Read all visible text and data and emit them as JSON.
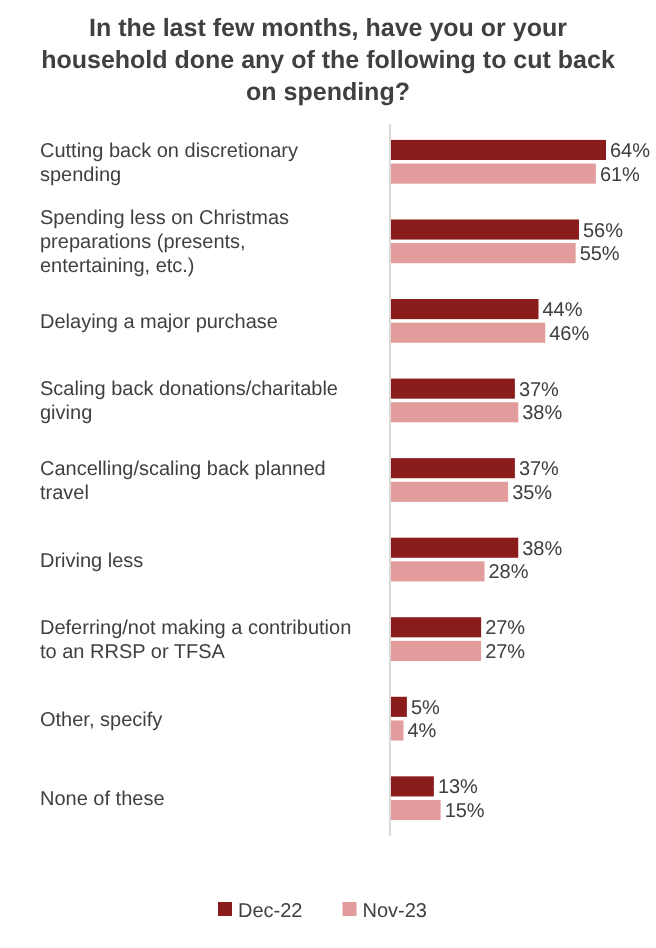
{
  "chart_data": {
    "type": "bar",
    "orientation": "horizontal",
    "title": "In the last few months, have you or your household done any of the following to cut back on spending?",
    "categories": [
      "Cutting back on discretionary spending",
      "Spending less on Christmas preparations (presents, entertaining, etc.)",
      "Delaying a major purchase",
      "Scaling back donations/charitable giving",
      "Cancelling/scaling back planned travel",
      "Driving less",
      "Deferring/not making a contribution to an RRSP or TFSA",
      "Other, specify",
      "None of these"
    ],
    "series": [
      {
        "name": "Dec-22",
        "color": "#8b1c1c",
        "values": [
          64,
          56,
          44,
          37,
          37,
          38,
          27,
          5,
          13
        ],
        "value_labels": [
          "64%",
          "56%",
          "44%",
          "37%",
          "37%",
          "38%",
          "27%",
          "5%",
          "13%"
        ]
      },
      {
        "name": "Nov-23",
        "color": "#e39c9c",
        "values": [
          61,
          55,
          46,
          38,
          35,
          28,
          27,
          4,
          15
        ],
        "value_labels": [
          "61%",
          "55%",
          "46%",
          "38%",
          "35%",
          "28%",
          "27%",
          "4%",
          "15%"
        ]
      }
    ],
    "legend": "bottom"
  }
}
